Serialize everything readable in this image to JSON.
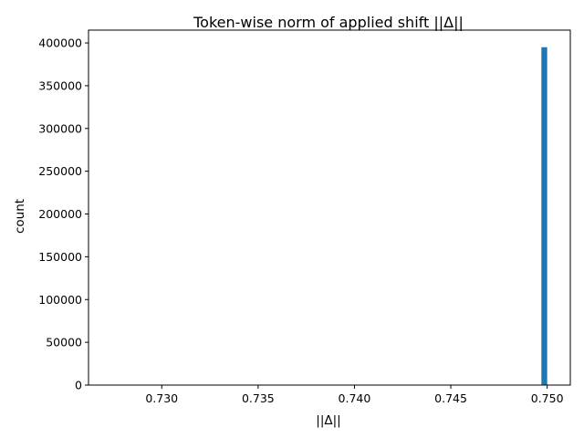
{
  "chart_data": {
    "type": "bar",
    "title": "Token-wise norm of applied shift ||Δ||",
    "xlabel": "||Δ||",
    "ylabel": "count",
    "xlim": [
      0.7262,
      0.7512
    ],
    "ylim": [
      0,
      415000
    ],
    "xticks": [
      0.73,
      0.735,
      0.74,
      0.745,
      0.75
    ],
    "xtick_labels": [
      "0.730",
      "0.735",
      "0.740",
      "0.745",
      "0.750"
    ],
    "yticks": [
      0,
      50000,
      100000,
      150000,
      200000,
      250000,
      300000,
      350000,
      400000
    ],
    "ytick_labels": [
      "0",
      "50000",
      "100000",
      "150000",
      "200000",
      "250000",
      "300000",
      "350000",
      "400000"
    ],
    "bins": [
      {
        "x0": 0.7497,
        "x1": 0.75,
        "count": 395000
      }
    ],
    "grid": false,
    "colors": {
      "bar": "#1f77b4",
      "axis": "#000000",
      "background": "#ffffff"
    }
  }
}
